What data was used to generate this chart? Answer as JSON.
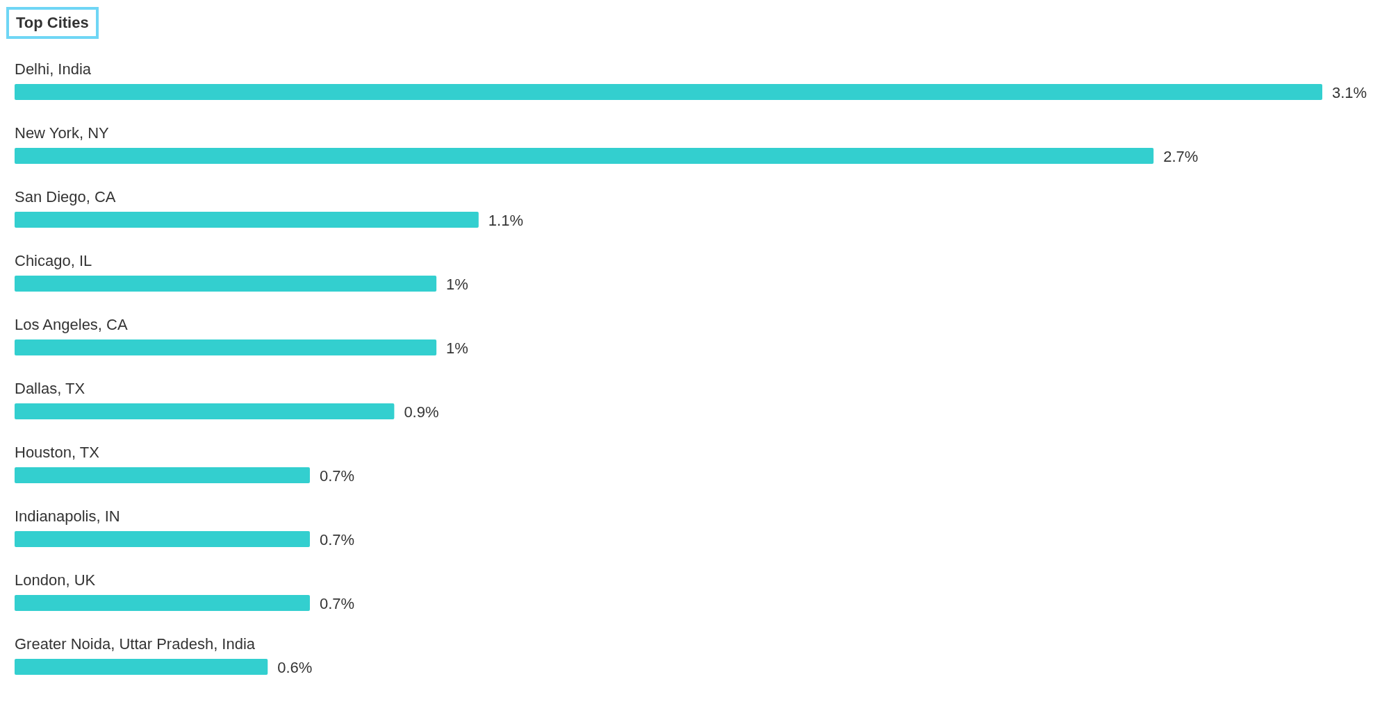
{
  "chart_data": {
    "type": "bar",
    "orientation": "horizontal",
    "title": "Top Cities",
    "categories": [
      "Delhi, India",
      "New York, NY",
      "San Diego, CA",
      "Chicago, IL",
      "Los Angeles, CA",
      "Dallas, TX",
      "Houston, TX",
      "Indianapolis, IN",
      "London, UK",
      "Greater Noida, Uttar Pradesh, India"
    ],
    "values": [
      3.1,
      2.7,
      1.1,
      1,
      1,
      0.9,
      0.7,
      0.7,
      0.7,
      0.6
    ],
    "value_labels": [
      "3.1%",
      "2.7%",
      "1.1%",
      "1%",
      "1%",
      "0.9%",
      "0.7%",
      "0.7%",
      "0.7%",
      "0.6%"
    ],
    "color": "#33cfcf"
  }
}
